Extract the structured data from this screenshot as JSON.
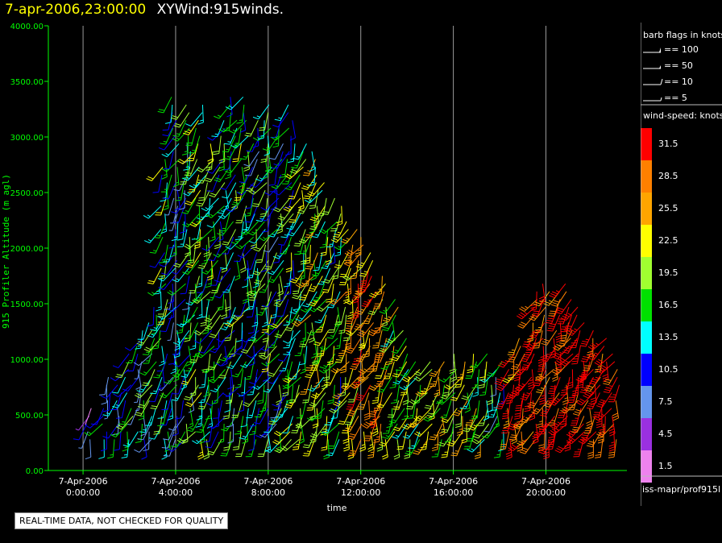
{
  "title": {
    "datetime": "7-apr-2006,23:00:00",
    "name": "XYWind:915winds."
  },
  "legend": {
    "barb_title": "barb flags in knots",
    "barbs": [
      {
        "label": "== 100",
        "kind": "pennant"
      },
      {
        "label": "== 50",
        "kind": "pennant-small"
      },
      {
        "label": "== 10",
        "kind": "full"
      },
      {
        "label": "== 5",
        "kind": "half"
      }
    ],
    "speed_title": "wind-speed: knots",
    "speed_scale": [
      {
        "label": "31.5",
        "color": "#ff0000"
      },
      {
        "label": "28.5",
        "color": "#ff8000"
      },
      {
        "label": "25.5",
        "color": "#ffa500"
      },
      {
        "label": "22.5",
        "color": "#ffff00"
      },
      {
        "label": "19.5",
        "color": "#a0ff30"
      },
      {
        "label": "16.5",
        "color": "#00e000"
      },
      {
        "label": "13.5",
        "color": "#00ffff"
      },
      {
        "label": "10.5",
        "color": "#0000ff"
      },
      {
        "label": "7.5",
        "color": "#6495ed"
      },
      {
        "label": "4.5",
        "color": "#9a30e0"
      },
      {
        "label": "1.5",
        "color": "#ee82ee"
      }
    ],
    "source": "iss-mapr/prof915l"
  },
  "footer": {
    "quality_note": "REAL-TIME DATA, NOT CHECKED FOR QUALITY"
  },
  "chart_data": {
    "type": "wind-barb",
    "title": "7-apr-2006,23:00:00  XYWind:915winds.",
    "xlabel": "time",
    "ylabel": "915 Profiler Altitude (m agl)",
    "ylim": [
      0,
      4000
    ],
    "yticks": [
      "0.00",
      "500.00",
      "1000.00",
      "1500.00",
      "2000.00",
      "2500.00",
      "3000.00",
      "3500.00",
      "4000.00"
    ],
    "xlim_hours": [
      -1.5,
      23.5
    ],
    "xticks": [
      {
        "hour": 0,
        "line1": "7-Apr-2006",
        "line2": "0:00:00"
      },
      {
        "hour": 4,
        "line1": "7-Apr-2006",
        "line2": "4:00:00"
      },
      {
        "hour": 8,
        "line1": "7-Apr-2006",
        "line2": "8:00:00"
      },
      {
        "hour": 12,
        "line1": "7-Apr-2006",
        "line2": "12:00:00"
      },
      {
        "hour": 16,
        "line1": "7-Apr-2006",
        "line2": "16:00:00"
      },
      {
        "hour": 20,
        "line1": "7-Apr-2006",
        "line2": "20:00:00"
      }
    ],
    "vertical_grid": true,
    "columns": [
      {
        "hour": 0.3,
        "top": 600,
        "speed": 7
      },
      {
        "hour": 1.0,
        "top": 900,
        "speed": 10
      },
      {
        "hour": 1.5,
        "top": 800,
        "speed": 12
      },
      {
        "hour": 2.0,
        "top": 1100,
        "speed": 14
      },
      {
        "hour": 2.5,
        "top": 1300,
        "speed": 12
      },
      {
        "hour": 3.0,
        "top": 1500,
        "speed": 14
      },
      {
        "hour": 3.5,
        "top": 2800,
        "speed": 16
      },
      {
        "hour": 4.0,
        "top": 3400,
        "speed": 12
      },
      {
        "hour": 4.5,
        "top": 3300,
        "speed": 14
      },
      {
        "hour": 5.0,
        "top": 3300,
        "speed": 18
      },
      {
        "hour": 5.5,
        "top": 3000,
        "speed": 16
      },
      {
        "hour": 6.0,
        "top": 3200,
        "speed": 15
      },
      {
        "hour": 6.5,
        "top": 3400,
        "speed": 14
      },
      {
        "hour": 7.0,
        "top": 3400,
        "speed": 16
      },
      {
        "hour": 7.5,
        "top": 3200,
        "speed": 14
      },
      {
        "hour": 8.0,
        "top": 3300,
        "speed": 16
      },
      {
        "hour": 8.5,
        "top": 3200,
        "speed": 14
      },
      {
        "hour": 9.0,
        "top": 3300,
        "speed": 16
      },
      {
        "hour": 9.5,
        "top": 3000,
        "speed": 18
      },
      {
        "hour": 10.0,
        "top": 2900,
        "speed": 20
      },
      {
        "hour": 10.5,
        "top": 2600,
        "speed": 18
      },
      {
        "hour": 11.0,
        "top": 2500,
        "speed": 16
      },
      {
        "hour": 11.5,
        "top": 2300,
        "speed": 22
      },
      {
        "hour": 12.0,
        "top": 2200,
        "speed": 26
      },
      {
        "hour": 12.5,
        "top": 2000,
        "speed": 28
      },
      {
        "hour": 13.0,
        "top": 1800,
        "speed": 24
      },
      {
        "hour": 13.5,
        "top": 1600,
        "speed": 20
      },
      {
        "hour": 14.0,
        "top": 1300,
        "speed": 18
      },
      {
        "hour": 14.5,
        "top": 1000,
        "speed": 18
      },
      {
        "hour": 15.0,
        "top": 1000,
        "speed": 20
      },
      {
        "hour": 15.5,
        "top": 1000,
        "speed": 22
      },
      {
        "hour": 16.0,
        "top": 1100,
        "speed": 20
      },
      {
        "hour": 16.5,
        "top": 1000,
        "speed": 22
      },
      {
        "hour": 17.0,
        "top": 1100,
        "speed": 20
      },
      {
        "hour": 17.5,
        "top": 1050,
        "speed": 18
      },
      {
        "hour": 18.0,
        "top": 1000,
        "speed": 12
      },
      {
        "hour": 18.5,
        "top": 1050,
        "speed": 30
      },
      {
        "hour": 19.0,
        "top": 1200,
        "speed": 29
      },
      {
        "hour": 19.5,
        "top": 1650,
        "speed": 32
      },
      {
        "hour": 20.0,
        "top": 1700,
        "speed": 31
      },
      {
        "hour": 20.5,
        "top": 1650,
        "speed": 32
      },
      {
        "hour": 21.0,
        "top": 1700,
        "speed": 33
      },
      {
        "hour": 21.5,
        "top": 1500,
        "speed": 32
      },
      {
        "hour": 22.0,
        "top": 1300,
        "speed": 33
      },
      {
        "hour": 22.5,
        "top": 1200,
        "speed": 32
      },
      {
        "hour": 23.0,
        "top": 1100,
        "speed": 33
      }
    ]
  }
}
